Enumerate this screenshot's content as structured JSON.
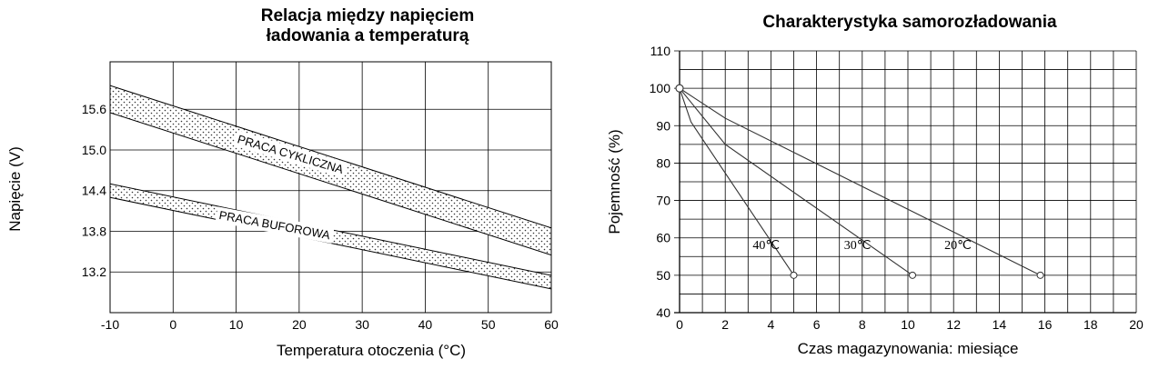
{
  "chart_data": [
    {
      "type": "area",
      "title_lines": [
        "Relacja między napięciem",
        "ładowania a temperaturą"
      ],
      "xlabel": "Temperatura otoczenia (°C)",
      "ylabel": "Napięcie (V)",
      "xlim": [
        -10,
        60
      ],
      "ylim": [
        12.6,
        16.3
      ],
      "xticks": [
        "-10",
        "0",
        "10",
        "20",
        "30",
        "40",
        "50",
        "60"
      ],
      "yticks": [
        "15.6",
        "15.0",
        "14.4",
        "13.8",
        "13.2"
      ],
      "grid": true,
      "colors": {
        "grid": "#000000",
        "band_fill": "#ffffff",
        "dots": "#333333"
      },
      "series": [
        {
          "name": "PRACA CYKLICZNA",
          "x": [
            -10,
            60
          ],
          "upper": [
            15.95,
            13.85
          ],
          "lower": [
            15.55,
            13.45
          ]
        },
        {
          "name": "PRACA BUFOROWA",
          "x": [
            -10,
            60
          ],
          "upper": [
            14.5,
            13.15
          ],
          "lower": [
            14.3,
            12.95
          ]
        }
      ]
    },
    {
      "type": "line",
      "title": "Charakterystyka samorozładowania",
      "xlabel": "Czas magazynowania: miesiące",
      "ylabel": "Pojemność (%)",
      "xlim": [
        0,
        20
      ],
      "ylim": [
        40,
        110
      ],
      "xticks": [
        "0",
        "2",
        "4",
        "6",
        "8",
        "10",
        "12",
        "14",
        "16",
        "18",
        "20"
      ],
      "yticks": [
        "110",
        "100",
        "90",
        "80",
        "70",
        "60",
        "50",
        "40"
      ],
      "grid": true,
      "series": [
        {
          "name": "40℃",
          "x": [
            0,
            0.5,
            5
          ],
          "y": [
            100,
            91,
            50
          ]
        },
        {
          "name": "30℃",
          "x": [
            0,
            2,
            10.2
          ],
          "y": [
            100,
            85,
            50
          ]
        },
        {
          "name": "20℃",
          "x": [
            0,
            2,
            15.8
          ],
          "y": [
            100,
            92,
            50
          ]
        }
      ],
      "series_labels": [
        {
          "text": "40℃",
          "x": 3.2,
          "y": 57
        },
        {
          "text": "30℃",
          "x": 7.2,
          "y": 57
        },
        {
          "text": "20℃",
          "x": 11.6,
          "y": 57
        }
      ]
    }
  ]
}
